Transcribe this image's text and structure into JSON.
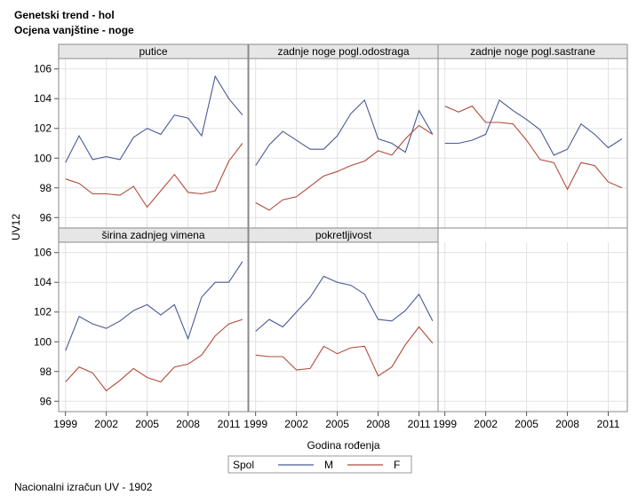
{
  "titles": {
    "line1": "Genetski trend - hol",
    "line2": "Ocjena vanjštine - noge"
  },
  "footnote": "Nacionalni izračun UV - 1902",
  "colors": {
    "M": "#4a5a96",
    "F": "#b04a3a",
    "panel_header": "#e6e6e6",
    "grid": "#e2e2e2",
    "frame": "#8a8a8a"
  },
  "chart_data": {
    "type": "line",
    "xlabel": "Godina rođenja",
    "ylabel": "UV12",
    "xticks": [
      1999,
      2002,
      2005,
      2008,
      2011
    ],
    "yticks": [
      96,
      98,
      100,
      102,
      104,
      106
    ],
    "xlim": [
      1998.5,
      2012.4
    ],
    "ylim": [
      95.3,
      106.7
    ],
    "legend": {
      "title": "Spol",
      "entries": [
        "M",
        "F"
      ],
      "position": "bottom"
    },
    "x": [
      1999,
      2000,
      2001,
      2002,
      2003,
      2004,
      2005,
      2006,
      2007,
      2008,
      2009,
      2010,
      2011,
      2012
    ],
    "panels": [
      {
        "title": "putice",
        "series": [
          {
            "name": "M",
            "values": [
              99.7,
              101.5,
              99.9,
              100.1,
              99.9,
              101.4,
              102.0,
              101.6,
              102.9,
              102.7,
              101.5,
              105.5,
              104.0,
              102.9
            ]
          },
          {
            "name": "F",
            "values": [
              98.6,
              98.3,
              97.6,
              97.6,
              97.5,
              98.1,
              96.7,
              97.8,
              98.9,
              97.7,
              97.6,
              97.8,
              99.8,
              101.0
            ]
          }
        ]
      },
      {
        "title": "zadnje noge pogl.odostraga",
        "series": [
          {
            "name": "M",
            "values": [
              99.5,
              100.9,
              101.8,
              101.2,
              100.6,
              100.6,
              101.5,
              103.0,
              103.9,
              101.3,
              101.0,
              100.4,
              103.2,
              101.6
            ]
          },
          {
            "name": "F",
            "values": [
              97.0,
              96.5,
              97.2,
              97.4,
              98.1,
              98.8,
              99.1,
              99.5,
              99.8,
              100.5,
              100.2,
              101.3,
              102.2,
              101.6
            ]
          }
        ]
      },
      {
        "title": "zadnje noge pogl.sastrane",
        "series": [
          {
            "name": "M",
            "values": [
              101.0,
              101.0,
              101.2,
              101.6,
              103.9,
              103.2,
              102.6,
              101.9,
              100.2,
              100.6,
              102.3,
              101.6,
              100.7,
              101.3
            ]
          },
          {
            "name": "F",
            "values": [
              103.5,
              103.1,
              103.5,
              102.4,
              102.4,
              102.3,
              101.2,
              99.9,
              99.7,
              97.9,
              99.7,
              99.5,
              98.4,
              98.0
            ]
          }
        ]
      },
      {
        "title": "širina zadnjeg vimena",
        "series": [
          {
            "name": "M",
            "values": [
              99.4,
              101.7,
              101.2,
              100.9,
              101.4,
              102.1,
              102.5,
              101.8,
              102.5,
              100.2,
              103.0,
              104.0,
              104.0,
              105.4
            ]
          },
          {
            "name": "F",
            "values": [
              97.3,
              98.3,
              97.9,
              96.7,
              97.4,
              98.2,
              97.6,
              97.3,
              98.3,
              98.5,
              99.1,
              100.4,
              101.2,
              101.5
            ]
          }
        ]
      },
      {
        "title": "pokretljivost",
        "series": [
          {
            "name": "M",
            "values": [
              100.7,
              101.5,
              101.0,
              102.0,
              103.0,
              104.4,
              104.0,
              103.8,
              103.2,
              101.5,
              101.4,
              102.1,
              103.2,
              101.4
            ]
          },
          {
            "name": "F",
            "values": [
              99.1,
              99.0,
              99.0,
              98.1,
              98.2,
              99.7,
              99.2,
              99.6,
              99.7,
              97.7,
              98.3,
              99.8,
              101.0,
              99.9
            ]
          }
        ]
      }
    ]
  }
}
